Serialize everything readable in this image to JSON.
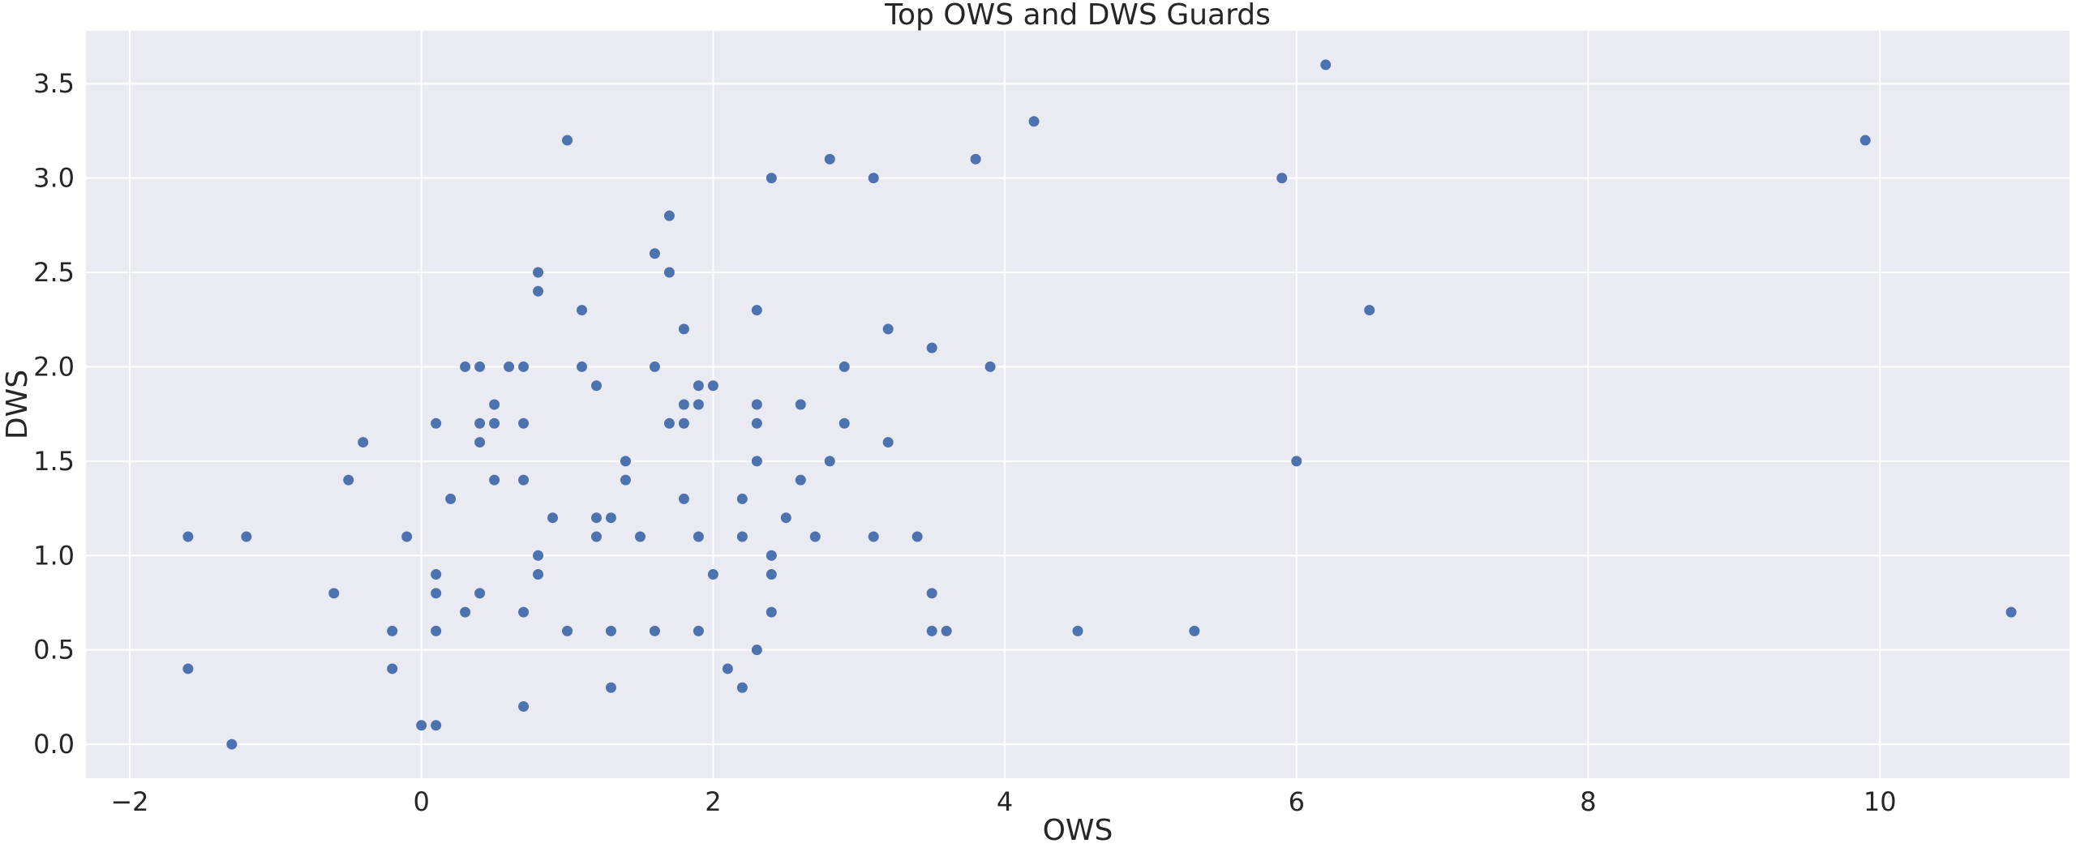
{
  "chart_data": {
    "type": "scatter",
    "title": "Top OWS and DWS Guards",
    "xlabel": "OWS",
    "ylabel": "DWS",
    "xlim": [
      -2.3,
      11.3
    ],
    "ylim": [
      -0.18,
      3.78
    ],
    "xticks": [
      -2,
      0,
      2,
      4,
      6,
      8,
      10
    ],
    "xtick_labels": [
      "−2",
      "0",
      "2",
      "4",
      "6",
      "8",
      "10"
    ],
    "yticks": [
      0.0,
      0.5,
      1.0,
      1.5,
      2.0,
      2.5,
      3.0,
      3.5
    ],
    "ytick_labels": [
      "0.0",
      "0.5",
      "1.0",
      "1.5",
      "2.0",
      "2.5",
      "3.0",
      "3.5"
    ],
    "grid": true,
    "colors": {
      "background": "#eaeaf2",
      "grid": "#ffffff",
      "marker": "#4c72b0"
    },
    "points": [
      [
        -1.6,
        1.1
      ],
      [
        -1.6,
        0.4
      ],
      [
        -1.3,
        0.0
      ],
      [
        -1.2,
        1.1
      ],
      [
        -0.6,
        0.8
      ],
      [
        -0.5,
        1.4
      ],
      [
        -0.4,
        1.6
      ],
      [
        -0.2,
        0.6
      ],
      [
        -0.2,
        0.4
      ],
      [
        -0.1,
        1.1
      ],
      [
        0.0,
        0.1
      ],
      [
        0.1,
        1.7
      ],
      [
        0.1,
        0.9
      ],
      [
        0.1,
        0.8
      ],
      [
        0.1,
        0.6
      ],
      [
        0.1,
        0.1
      ],
      [
        0.2,
        1.3
      ],
      [
        0.3,
        2.0
      ],
      [
        0.3,
        0.7
      ],
      [
        0.4,
        2.0
      ],
      [
        0.4,
        1.7
      ],
      [
        0.4,
        1.6
      ],
      [
        0.4,
        0.8
      ],
      [
        0.5,
        1.8
      ],
      [
        0.5,
        1.7
      ],
      [
        0.5,
        1.4
      ],
      [
        0.6,
        2.0
      ],
      [
        0.7,
        2.0
      ],
      [
        0.7,
        1.7
      ],
      [
        0.7,
        1.4
      ],
      [
        0.7,
        0.7
      ],
      [
        0.7,
        0.2
      ],
      [
        0.8,
        2.5
      ],
      [
        0.8,
        2.4
      ],
      [
        0.8,
        1.0
      ],
      [
        0.8,
        0.9
      ],
      [
        0.9,
        1.2
      ],
      [
        1.0,
        3.2
      ],
      [
        1.0,
        0.6
      ],
      [
        1.1,
        2.3
      ],
      [
        1.1,
        2.0
      ],
      [
        1.2,
        1.9
      ],
      [
        1.2,
        1.2
      ],
      [
        1.2,
        1.1
      ],
      [
        1.3,
        1.2
      ],
      [
        1.3,
        0.6
      ],
      [
        1.3,
        0.3
      ],
      [
        1.4,
        1.5
      ],
      [
        1.4,
        1.4
      ],
      [
        1.5,
        1.1
      ],
      [
        1.6,
        2.6
      ],
      [
        1.6,
        2.0
      ],
      [
        1.6,
        0.6
      ],
      [
        1.7,
        2.8
      ],
      [
        1.7,
        2.5
      ],
      [
        1.7,
        1.7
      ],
      [
        1.8,
        2.2
      ],
      [
        1.8,
        1.8
      ],
      [
        1.8,
        1.7
      ],
      [
        1.8,
        1.3
      ],
      [
        1.9,
        1.9
      ],
      [
        1.9,
        1.8
      ],
      [
        1.9,
        1.1
      ],
      [
        1.9,
        0.6
      ],
      [
        2.0,
        1.9
      ],
      [
        2.0,
        0.9
      ],
      [
        2.1,
        0.4
      ],
      [
        2.2,
        1.3
      ],
      [
        2.2,
        1.1
      ],
      [
        2.2,
        0.3
      ],
      [
        2.3,
        2.3
      ],
      [
        2.3,
        1.8
      ],
      [
        2.3,
        1.7
      ],
      [
        2.3,
        1.5
      ],
      [
        2.3,
        0.5
      ],
      [
        2.4,
        3.0
      ],
      [
        2.4,
        1.0
      ],
      [
        2.4,
        0.9
      ],
      [
        2.4,
        0.7
      ],
      [
        2.5,
        1.2
      ],
      [
        2.6,
        1.8
      ],
      [
        2.6,
        1.4
      ],
      [
        2.7,
        1.1
      ],
      [
        2.8,
        3.1
      ],
      [
        2.8,
        1.5
      ],
      [
        2.9,
        2.0
      ],
      [
        2.9,
        1.7
      ],
      [
        3.1,
        3.0
      ],
      [
        3.1,
        1.1
      ],
      [
        3.2,
        2.2
      ],
      [
        3.2,
        1.6
      ],
      [
        3.4,
        1.1
      ],
      [
        3.5,
        2.1
      ],
      [
        3.5,
        0.8
      ],
      [
        3.5,
        0.6
      ],
      [
        3.6,
        0.6
      ],
      [
        3.8,
        3.1
      ],
      [
        3.9,
        2.0
      ],
      [
        4.2,
        3.3
      ],
      [
        4.5,
        0.6
      ],
      [
        5.3,
        0.6
      ],
      [
        5.9,
        3.0
      ],
      [
        6.0,
        1.5
      ],
      [
        6.2,
        3.6
      ],
      [
        6.5,
        2.3
      ],
      [
        9.9,
        3.2
      ],
      [
        10.9,
        0.7
      ]
    ]
  }
}
